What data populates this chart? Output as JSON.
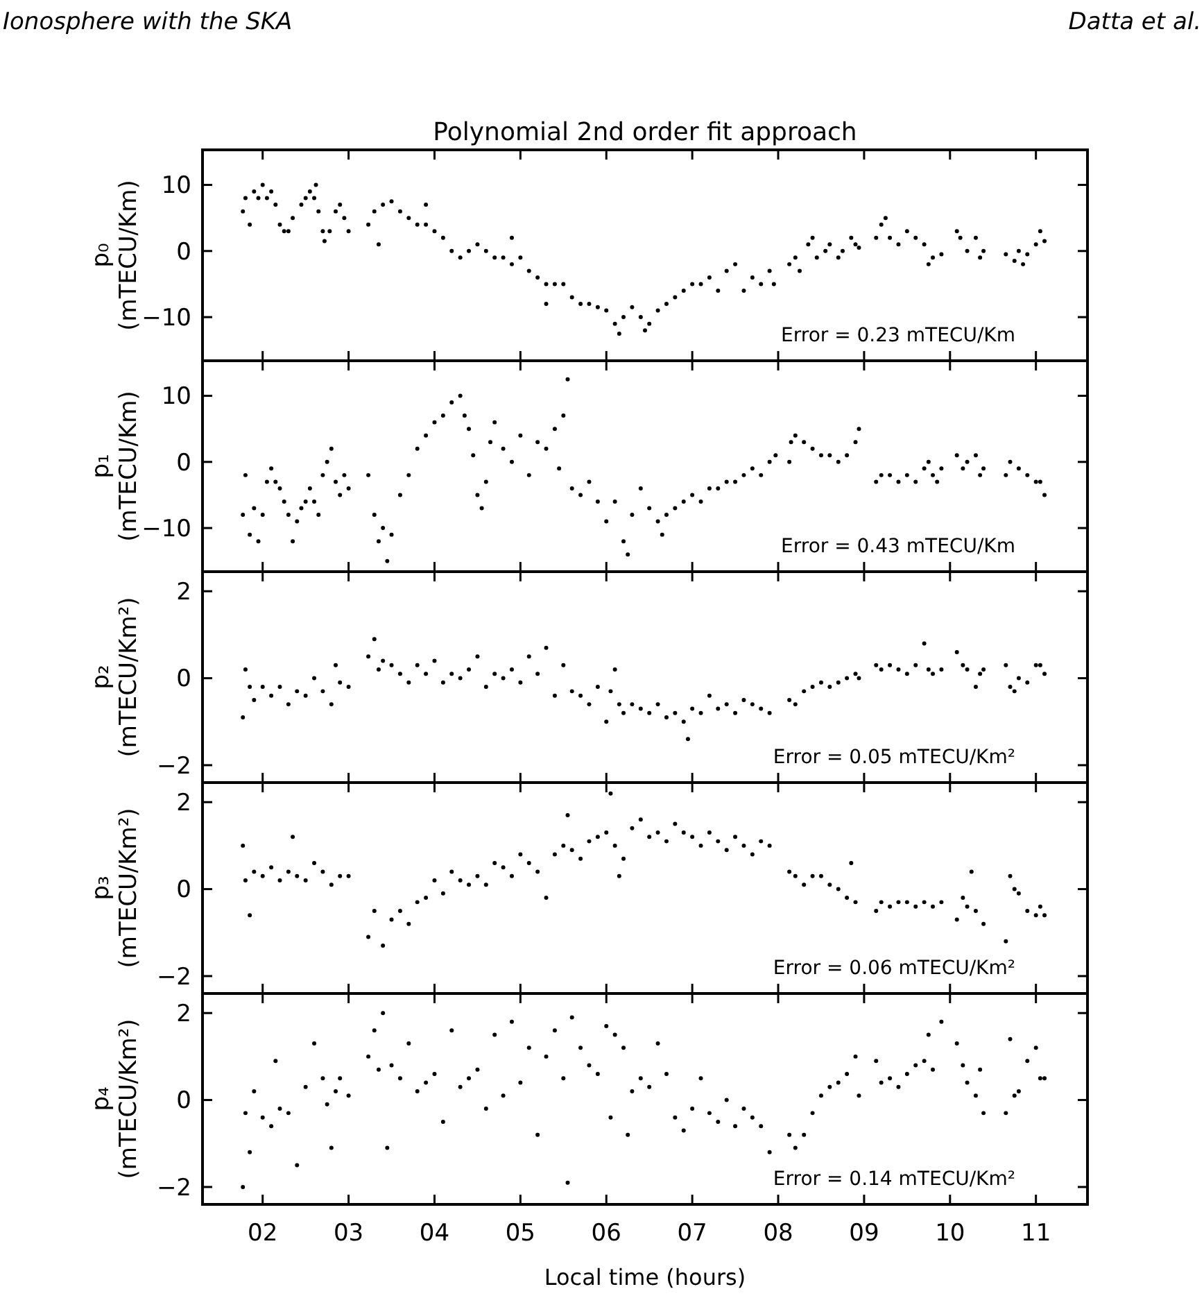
{
  "chart_data": [
    {
      "type": "scatter",
      "title": "Polynomial 2nd order fit approach",
      "ylabel": "p₀\n(mTECU/Km)",
      "annotations": [
        "Ionosphere with the SKA",
        "Datta et al.",
        "Error = 0.23 mTECU/Km"
      ],
      "marker": "circle",
      "tick_labels": "y",
      "xlim": [
        1.3,
        11.6
      ],
      "xticks": [
        2,
        3,
        4,
        5,
        6,
        7,
        8,
        9,
        10,
        11
      ],
      "ylim": [
        -16.6,
        15.3
      ],
      "yticks": [
        -10,
        0,
        10
      ],
      "series": [
        {
          "color": "#000000",
          "x": [
            1.77,
            1.8,
            1.85,
            1.9,
            1.95,
            2.0,
            2.05,
            2.1,
            2.15,
            2.2,
            2.25,
            2.3,
            2.35,
            2.45,
            2.5,
            2.55,
            2.6,
            2.62,
            2.65,
            2.7,
            2.72,
            2.78,
            2.85,
            2.9,
            2.95,
            3.0,
            3.23,
            3.3,
            3.35,
            3.4,
            3.5,
            3.6,
            3.7,
            3.8,
            3.9,
            3.9,
            4.0,
            4.1,
            4.2,
            4.3,
            4.4,
            4.5,
            4.6,
            4.7,
            4.8,
            4.9,
            4.9,
            5.0,
            5.1,
            5.2,
            5.3,
            5.3,
            5.4,
            5.5,
            5.6,
            5.7,
            5.8,
            5.9,
            6.0,
            6.1,
            6.15,
            6.2,
            6.3,
            6.4,
            6.45,
            6.5,
            6.6,
            6.7,
            6.8,
            6.9,
            7.0,
            7.1,
            7.2,
            7.3,
            7.4,
            7.5,
            7.6,
            7.7,
            7.8,
            7.9,
            7.95,
            8.13,
            8.2,
            8.25,
            8.35,
            8.4,
            8.45,
            8.55,
            8.6,
            8.7,
            8.75,
            8.85,
            8.9,
            8.94,
            9.14,
            9.2,
            9.25,
            9.3,
            9.4,
            9.5,
            9.6,
            9.7,
            9.75,
            9.8,
            9.9,
            10.08,
            10.12,
            10.2,
            10.3,
            10.35,
            10.39,
            10.65,
            10.75,
            10.8,
            10.85,
            10.9,
            11.0,
            11.05,
            11.1
          ],
          "values": [
            6,
            8,
            4,
            9,
            8,
            10,
            8,
            9,
            7,
            4,
            3,
            3,
            5,
            7,
            8,
            9,
            8,
            10,
            6,
            3,
            1.5,
            3,
            6,
            7,
            5,
            3,
            4,
            6,
            1,
            7,
            7.5,
            6,
            5,
            4,
            4,
            7,
            3,
            2,
            0,
            -1,
            0,
            1,
            0,
            -1,
            -1,
            -2,
            2,
            -1,
            -3,
            -4,
            -5,
            -8,
            -5,
            -5,
            -7,
            -8,
            -8,
            -8.5,
            -9,
            -11,
            -12.5,
            -10,
            -8.5,
            -10,
            -12,
            -11,
            -9,
            -8,
            -7,
            -6,
            -5,
            -5,
            -4,
            -6,
            -3,
            -2,
            -6,
            -4,
            -5,
            -3,
            -5,
            -2,
            -1,
            -3,
            1,
            2,
            -1,
            0,
            1,
            -1,
            0,
            2,
            1,
            0.5,
            2,
            4,
            5,
            2,
            1,
            3,
            2,
            1,
            -2,
            -1,
            -0.5,
            3,
            2,
            0,
            2,
            -1,
            0,
            -0.5,
            -1.5,
            0,
            -2,
            -0.5,
            1,
            3,
            1.5
          ]
        }
      ]
    },
    {
      "type": "scatter",
      "ylabel": "p₁\n(mTECU/Km)",
      "annotations": [
        "Error = 0.43 mTECU/Km"
      ],
      "marker": "circle",
      "tick_labels": "y",
      "xlim": [
        1.3,
        11.6
      ],
      "xticks": [
        2,
        3,
        4,
        5,
        6,
        7,
        8,
        9,
        10,
        11
      ],
      "ylim": [
        -16.6,
        15.3
      ],
      "yticks": [
        -10,
        0,
        10
      ],
      "series": [
        {
          "color": "#000000",
          "x": [
            1.77,
            1.8,
            1.85,
            1.9,
            1.95,
            2.0,
            2.05,
            2.1,
            2.15,
            2.2,
            2.25,
            2.3,
            2.35,
            2.4,
            2.45,
            2.5,
            2.55,
            2.6,
            2.65,
            2.7,
            2.75,
            2.8,
            2.85,
            2.9,
            2.95,
            3.0,
            3.23,
            3.3,
            3.35,
            3.4,
            3.45,
            3.5,
            3.6,
            3.7,
            3.8,
            3.9,
            4.0,
            4.1,
            4.2,
            4.3,
            4.35,
            4.4,
            4.45,
            4.5,
            4.55,
            4.6,
            4.65,
            4.7,
            4.8,
            4.9,
            5.0,
            5.1,
            5.2,
            5.3,
            5.4,
            5.45,
            5.5,
            5.55,
            5.6,
            5.7,
            5.8,
            5.9,
            6.0,
            6.1,
            6.2,
            6.25,
            6.3,
            6.4,
            6.5,
            6.6,
            6.65,
            6.7,
            6.8,
            6.9,
            7.0,
            7.1,
            7.2,
            7.3,
            7.4,
            7.5,
            7.6,
            7.7,
            7.8,
            7.9,
            7.97,
            8.13,
            8.15,
            8.2,
            8.3,
            8.4,
            8.5,
            8.6,
            8.7,
            8.8,
            8.9,
            8.94,
            9.14,
            9.2,
            9.3,
            9.4,
            9.5,
            9.6,
            9.7,
            9.75,
            9.8,
            9.85,
            9.9,
            10.08,
            10.15,
            10.2,
            10.3,
            10.35,
            10.39,
            10.65,
            10.7,
            10.8,
            10.9,
            11.0,
            11.05,
            11.1
          ],
          "values": [
            -8,
            -2,
            -11,
            -7,
            -12,
            -8,
            -3,
            -1,
            -3,
            -4,
            -6,
            -8,
            -12,
            -9,
            -7,
            -6,
            -4,
            -6,
            -8,
            -2,
            0,
            2,
            -3,
            -5,
            -2,
            -4,
            -2,
            -8,
            -12,
            -10,
            -15,
            -11,
            -5,
            -2,
            2,
            4,
            6,
            7,
            9,
            10,
            7,
            5,
            1,
            -5,
            -7,
            -3,
            3,
            6,
            2,
            0,
            4,
            -2,
            3,
            2,
            5,
            -1,
            7,
            12.5,
            -4,
            -5,
            -3,
            -6,
            -9,
            -6,
            -12,
            -14,
            -8,
            -4,
            -7,
            -9,
            -11,
            -8,
            -7,
            -6,
            -5,
            -6,
            -4,
            -4,
            -3,
            -3,
            -2,
            -1,
            -2,
            0,
            1,
            0,
            3,
            4,
            3,
            2,
            1,
            1,
            0,
            1,
            3,
            5,
            -3,
            -2,
            -2,
            -3,
            -2,
            -3,
            -1,
            0,
            -2,
            -3,
            -1,
            1,
            -1,
            0,
            1,
            -2,
            -1,
            -2,
            0,
            -1,
            -2,
            -3,
            -3,
            -5
          ]
        }
      ]
    },
    {
      "type": "scatter",
      "ylabel": "p₂\n(mTECU/Km²)",
      "annotations": [
        "Error = 0.05 mTECU/Km²"
      ],
      "marker": "circle",
      "tick_labels": "y",
      "xlim": [
        1.3,
        11.6
      ],
      "xticks": [
        2,
        3,
        4,
        5,
        6,
        7,
        8,
        9,
        10,
        11
      ],
      "ylim": [
        -2.4,
        2.45
      ],
      "yticks": [
        -2,
        0,
        2
      ],
      "series": [
        {
          "color": "#000000",
          "x": [
            1.77,
            1.8,
            1.85,
            1.9,
            2.0,
            2.1,
            2.2,
            2.3,
            2.4,
            2.5,
            2.6,
            2.7,
            2.8,
            2.85,
            2.9,
            3.0,
            3.23,
            3.3,
            3.35,
            3.4,
            3.5,
            3.6,
            3.7,
            3.8,
            3.9,
            4.0,
            4.1,
            4.2,
            4.3,
            4.4,
            4.5,
            4.6,
            4.7,
            4.8,
            4.9,
            5.0,
            5.1,
            5.2,
            5.3,
            5.4,
            5.5,
            5.6,
            5.7,
            5.8,
            5.9,
            6.0,
            6.05,
            6.1,
            6.15,
            6.2,
            6.3,
            6.4,
            6.5,
            6.6,
            6.7,
            6.8,
            6.9,
            6.95,
            7.0,
            7.1,
            7.2,
            7.3,
            7.4,
            7.5,
            7.6,
            7.7,
            7.8,
            7.9,
            8.13,
            8.2,
            8.3,
            8.4,
            8.5,
            8.6,
            8.7,
            8.8,
            8.9,
            8.94,
            9.14,
            9.2,
            9.3,
            9.4,
            9.5,
            9.6,
            9.7,
            9.75,
            9.8,
            9.9,
            10.08,
            10.15,
            10.2,
            10.3,
            10.35,
            10.39,
            10.65,
            10.7,
            10.75,
            10.8,
            10.9,
            11.0,
            11.05,
            11.1
          ],
          "values": [
            -0.9,
            0.2,
            -0.2,
            -0.5,
            -0.2,
            -0.4,
            -0.2,
            -0.6,
            -0.3,
            -0.4,
            0,
            -0.3,
            -0.6,
            0.3,
            -0.1,
            -0.2,
            0.5,
            0.9,
            0.2,
            0.4,
            0.3,
            0.1,
            -0.1,
            0.3,
            0.1,
            0.4,
            -0.1,
            0.1,
            0,
            0.2,
            0.5,
            -0.2,
            0.1,
            0,
            0.2,
            -0.1,
            0.5,
            0.1,
            0.7,
            -0.4,
            0.3,
            -0.3,
            -0.4,
            -0.6,
            -0.2,
            -1.0,
            -0.3,
            0.2,
            -0.6,
            -0.8,
            -0.6,
            -0.7,
            -0.8,
            -0.6,
            -0.9,
            -0.8,
            -1.0,
            -1.4,
            -0.7,
            -0.8,
            -0.4,
            -0.7,
            -0.6,
            -0.8,
            -0.5,
            -0.6,
            -0.7,
            -0.8,
            -0.5,
            -0.6,
            -0.3,
            -0.2,
            -0.1,
            -0.2,
            -0.1,
            0,
            0.1,
            0,
            0.3,
            0.2,
            0.3,
            0.2,
            0.1,
            0.3,
            0.8,
            0.2,
            0.1,
            0.2,
            0.6,
            0.3,
            0.2,
            -0.2,
            0.1,
            0.2,
            0.3,
            -0.2,
            -0.3,
            0,
            -0.1,
            0.3,
            0.3,
            0.1
          ]
        }
      ]
    },
    {
      "type": "scatter",
      "ylabel": "p₃\n(mTECU/Km²)",
      "annotations": [
        "Error = 0.06 mTECU/Km²"
      ],
      "marker": "circle",
      "tick_labels": "y",
      "xlim": [
        1.3,
        11.6
      ],
      "xticks": [
        2,
        3,
        4,
        5,
        6,
        7,
        8,
        9,
        10,
        11
      ],
      "ylim": [
        -2.4,
        2.45
      ],
      "yticks": [
        -2,
        0,
        2
      ],
      "series": [
        {
          "color": "#000000",
          "x": [
            1.77,
            1.8,
            1.85,
            1.9,
            2.0,
            2.1,
            2.2,
            2.3,
            2.35,
            2.4,
            2.5,
            2.6,
            2.7,
            2.8,
            2.9,
            3.0,
            3.23,
            3.3,
            3.4,
            3.5,
            3.6,
            3.7,
            3.8,
            3.9,
            4.0,
            4.1,
            4.2,
            4.3,
            4.4,
            4.5,
            4.6,
            4.7,
            4.8,
            4.9,
            5.0,
            5.1,
            5.2,
            5.3,
            5.4,
            5.5,
            5.55,
            5.6,
            5.7,
            5.8,
            5.9,
            6.0,
            6.05,
            6.1,
            6.15,
            6.2,
            6.3,
            6.4,
            6.5,
            6.6,
            6.7,
            6.8,
            6.9,
            7.0,
            7.1,
            7.2,
            7.3,
            7.4,
            7.5,
            7.6,
            7.7,
            7.8,
            7.9,
            8.13,
            8.2,
            8.3,
            8.4,
            8.5,
            8.6,
            8.7,
            8.8,
            8.85,
            8.9,
            9.14,
            9.2,
            9.3,
            9.4,
            9.5,
            9.6,
            9.7,
            9.8,
            9.9,
            10.08,
            10.15,
            10.2,
            10.25,
            10.3,
            10.39,
            10.65,
            10.7,
            10.75,
            10.8,
            10.9,
            11.0,
            11.05,
            11.1
          ],
          "values": [
            1.0,
            0.2,
            -0.6,
            0.4,
            0.3,
            0.5,
            0.2,
            0.4,
            1.2,
            0.3,
            0.2,
            0.6,
            0.4,
            0.1,
            0.3,
            0.3,
            -1.1,
            -0.5,
            -1.3,
            -0.7,
            -0.5,
            -0.8,
            -0.3,
            -0.2,
            0.2,
            -0.1,
            0.4,
            0.2,
            0.1,
            0.3,
            0.1,
            0.6,
            0.5,
            0.3,
            0.8,
            0.6,
            0.4,
            -0.2,
            0.8,
            1.0,
            1.7,
            0.9,
            0.7,
            1.1,
            1.2,
            1.3,
            2.2,
            1.0,
            0.3,
            0.7,
            1.4,
            1.6,
            1.2,
            1.3,
            1.1,
            1.5,
            1.3,
            1.2,
            1.0,
            1.3,
            1.1,
            0.9,
            1.2,
            1.0,
            0.8,
            1.1,
            1.0,
            0.4,
            0.3,
            0.1,
            0.3,
            0.3,
            0.1,
            0,
            -0.2,
            0.6,
            -0.3,
            -0.5,
            -0.3,
            -0.4,
            -0.3,
            -0.3,
            -0.4,
            -0.3,
            -0.4,
            -0.3,
            -0.7,
            -0.2,
            -0.4,
            0.4,
            -0.5,
            -0.8,
            -1.2,
            0.3,
            0,
            -0.1,
            -0.5,
            -0.6,
            -0.4,
            -0.6
          ]
        }
      ]
    },
    {
      "type": "scatter",
      "ylabel": "p₄\n(mTECU/Km²)",
      "xlabel": "Local time (hours)",
      "annotations": [
        "Error = 0.14 mTECU/Km²"
      ],
      "marker": "circle",
      "xlim": [
        1.3,
        11.6
      ],
      "xticks": [
        {
          "value": 2,
          "label": "02"
        },
        {
          "value": 3,
          "label": "03"
        },
        {
          "value": 4,
          "label": "04"
        },
        {
          "value": 5,
          "label": "05"
        },
        {
          "value": 6,
          "label": "06"
        },
        {
          "value": 7,
          "label": "07"
        },
        {
          "value": 8,
          "label": "08"
        },
        {
          "value": 9,
          "label": "09"
        },
        {
          "value": 10,
          "label": "10"
        },
        {
          "value": 11,
          "label": "11"
        }
      ],
      "ylim": [
        -2.4,
        2.45
      ],
      "yticks": [
        -2,
        0,
        2
      ],
      "series": [
        {
          "color": "#000000",
          "x": [
            1.77,
            1.8,
            1.85,
            1.9,
            2.0,
            2.1,
            2.15,
            2.2,
            2.3,
            2.4,
            2.5,
            2.6,
            2.7,
            2.75,
            2.8,
            2.85,
            2.9,
            3.0,
            3.23,
            3.3,
            3.35,
            3.4,
            3.45,
            3.5,
            3.6,
            3.7,
            3.8,
            3.9,
            4.0,
            4.1,
            4.2,
            4.3,
            4.4,
            4.5,
            4.6,
            4.7,
            4.8,
            4.9,
            5.0,
            5.1,
            5.2,
            5.3,
            5.4,
            5.5,
            5.55,
            5.6,
            5.7,
            5.8,
            5.9,
            6.0,
            6.05,
            6.1,
            6.2,
            6.25,
            6.3,
            6.4,
            6.5,
            6.6,
            6.7,
            6.8,
            6.9,
            7.0,
            7.1,
            7.2,
            7.3,
            7.4,
            7.5,
            7.6,
            7.7,
            7.8,
            7.9,
            8.13,
            8.2,
            8.3,
            8.4,
            8.5,
            8.6,
            8.7,
            8.8,
            8.9,
            8.94,
            9.14,
            9.2,
            9.3,
            9.4,
            9.5,
            9.6,
            9.7,
            9.75,
            9.8,
            9.9,
            10.08,
            10.15,
            10.2,
            10.3,
            10.35,
            10.39,
            10.65,
            10.7,
            10.75,
            10.8,
            10.9,
            11.0,
            11.05,
            11.1
          ],
          "values": [
            -2.0,
            -0.3,
            -1.2,
            0.2,
            -0.4,
            -0.6,
            0.9,
            -0.2,
            -0.3,
            -1.5,
            0.3,
            1.3,
            0.5,
            -0.1,
            -1.1,
            0.2,
            0.5,
            0.1,
            1.0,
            1.6,
            0.7,
            2.0,
            -1.1,
            0.8,
            0.5,
            1.3,
            0.2,
            0.4,
            0.6,
            -0.5,
            1.6,
            0.3,
            0.5,
            0.7,
            -0.2,
            1.5,
            0.1,
            1.8,
            0.4,
            1.2,
            -0.8,
            1.0,
            1.6,
            0.5,
            -1.9,
            1.9,
            1.2,
            0.8,
            0.6,
            1.7,
            -0.4,
            1.5,
            1.2,
            -0.8,
            0.2,
            0.5,
            0.3,
            1.3,
            0.6,
            -0.4,
            -0.7,
            -0.2,
            0.5,
            -0.3,
            -0.5,
            0,
            -0.6,
            -0.2,
            -0.4,
            -0.6,
            -1.2,
            -0.8,
            -1.1,
            -0.8,
            -0.3,
            0.1,
            0.3,
            0.4,
            0.6,
            1.0,
            0.1,
            0.9,
            0.4,
            0.5,
            0.3,
            0.6,
            0.8,
            0.9,
            1.5,
            0.7,
            1.8,
            1.3,
            0.8,
            0.4,
            0.1,
            0.7,
            -0.3,
            -0.3,
            1.4,
            0.1,
            0.2,
            0.9,
            1.2,
            0.5,
            0.5
          ]
        }
      ]
    }
  ]
}
